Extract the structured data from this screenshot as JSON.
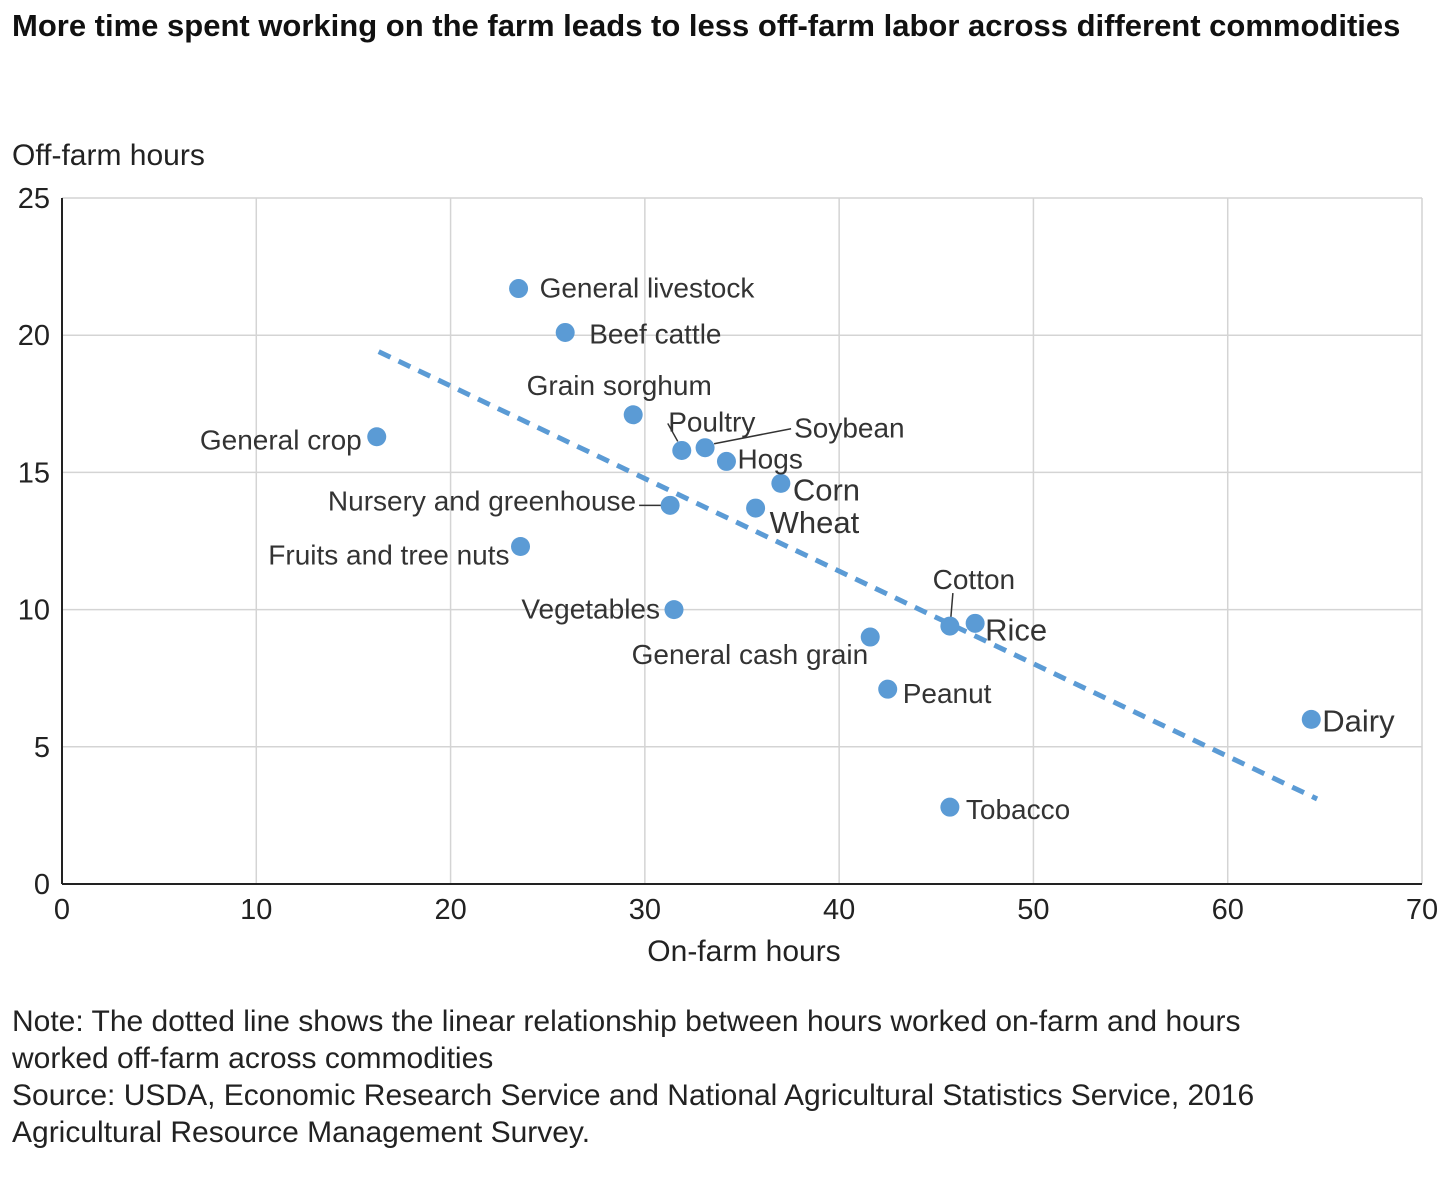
{
  "chart_data": {
    "type": "scatter",
    "title": "More time spent working on the farm leads to less off-farm labor across different commodities",
    "xlabel": "On-farm hours",
    "ylabel": "Off-farm hours",
    "xlim": [
      0,
      70
    ],
    "ylim": [
      0,
      25
    ],
    "xticks": [
      "0",
      "10",
      "20",
      "30",
      "40",
      "50",
      "60",
      "70"
    ],
    "yticks": [
      "0",
      "5",
      "10",
      "15",
      "20",
      "25"
    ],
    "grid": true,
    "point_color": "#5b9bd5",
    "trendline": {
      "style": "dashed",
      "x": [
        16.3,
        64.6
      ],
      "y": [
        19.4,
        3.1
      ]
    },
    "points": [
      {
        "label": "General livestock",
        "x": 23.5,
        "y": 21.7
      },
      {
        "label": "Beef cattle",
        "x": 25.9,
        "y": 20.1
      },
      {
        "label": "Grain sorghum",
        "x": 29.4,
        "y": 17.1
      },
      {
        "label": "General crop",
        "x": 16.2,
        "y": 16.3
      },
      {
        "label": "Poultry",
        "x": 31.9,
        "y": 15.8
      },
      {
        "label": "Soybean",
        "x": 33.1,
        "y": 15.9
      },
      {
        "label": "Hogs",
        "x": 34.2,
        "y": 15.4
      },
      {
        "label": "Corn",
        "x": 37.0,
        "y": 14.6
      },
      {
        "label": "Wheat",
        "x": 35.7,
        "y": 13.7
      },
      {
        "label": "Nursery and greenhouse",
        "x": 31.3,
        "y": 13.8
      },
      {
        "label": "Fruits and tree nuts",
        "x": 23.6,
        "y": 12.3
      },
      {
        "label": "Vegetables",
        "x": 31.5,
        "y": 10.0
      },
      {
        "label": "General cash grain",
        "x": 41.6,
        "y": 9.0
      },
      {
        "label": "Cotton",
        "x": 45.7,
        "y": 9.4
      },
      {
        "label": "Rice",
        "x": 47.0,
        "y": 9.5
      },
      {
        "label": "Peanut",
        "x": 42.5,
        "y": 7.1
      },
      {
        "label": "Dairy",
        "x": 64.3,
        "y": 6.0
      },
      {
        "label": "Tobacco",
        "x": 45.7,
        "y": 2.8
      }
    ]
  },
  "footer": {
    "note_line1": "Note: The dotted line shows the linear relationship between hours worked on-farm and hours",
    "note_line2": "worked off-farm across commodities",
    "source_line1": "Source: USDA, Economic Research Service and National Agricultural Statistics Service, 2016",
    "source_line2": "Agricultural Resource Management Survey."
  }
}
